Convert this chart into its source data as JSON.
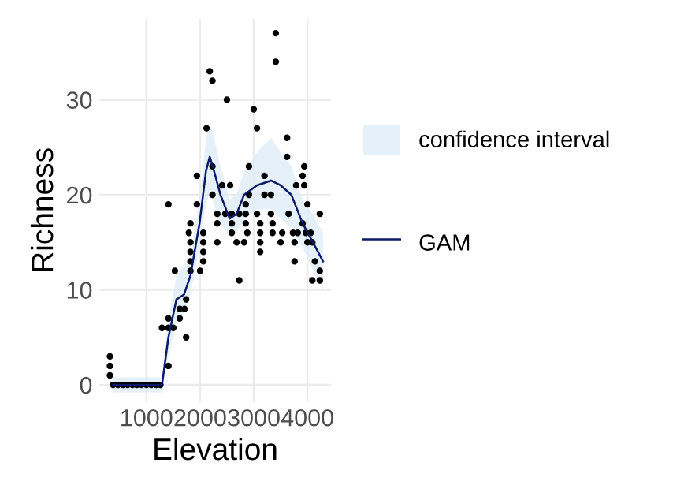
{
  "chart_data": {
    "type": "scatter",
    "xlabel": "Elevation",
    "ylabel": "Richness",
    "xlim": [
      120,
      4440
    ],
    "ylim": [
      -1.8,
      38.5
    ],
    "xticks": [
      1000,
      2000,
      3000,
      4000
    ],
    "yticks": [
      0,
      10,
      20,
      30
    ],
    "grid": true,
    "legend": "right",
    "annotations": [
      "confidence interval"
    ],
    "series": [
      {
        "type": "line",
        "name": "GAM",
        "color": "#0b1a66",
        "marker": "none",
        "x": [
          380,
          700,
          1000,
          1290,
          1410,
          1560,
          1700,
          1820,
          1990,
          2110,
          2180,
          2260,
          2380,
          2550,
          2680,
          2820,
          3060,
          3320,
          3500,
          3700,
          3910,
          4150,
          4290
        ],
        "values": [
          0,
          0,
          0,
          0,
          5,
          9,
          9.5,
          11.5,
          17,
          22.5,
          24,
          22.5,
          20,
          17.5,
          18,
          20,
          21,
          21.5,
          21,
          20,
          17,
          14.5,
          13
        ],
        "lower": [
          -0.8,
          -0.8,
          -0.8,
          -0.8,
          3,
          6.5,
          7.5,
          9.5,
          14.5,
          19,
          20.5,
          19,
          17,
          15.5,
          16,
          17.5,
          18.5,
          18.5,
          17.5,
          16.5,
          14.5,
          11.5,
          10
        ],
        "upper": [
          0.8,
          0.8,
          0.8,
          0.8,
          7,
          11.5,
          12.5,
          13.5,
          19.5,
          26,
          27.5,
          26,
          23,
          19.5,
          20,
          22.5,
          24.5,
          26,
          24.5,
          23,
          19.5,
          17.5,
          16
        ]
      },
      {
        "color": "#000000",
        "marker": "circle",
        "x": [
          320,
          320,
          320,
          380,
          470,
          560,
          650,
          740,
          820,
          910,
          1000,
          1090,
          1180,
          1260,
          1410,
          1290,
          1410,
          1500,
          1410,
          1620,
          1620,
          1710,
          1740,
          1740,
          1530,
          1820,
          2000,
          1820,
          2060,
          1820,
          2060,
          1820,
          2060,
          1790,
          2060,
          1820,
          3410,
          3410,
          2180,
          2230,
          2500,
          3000,
          3060,
          2120,
          3620,
          3620,
          3940,
          3910,
          2910,
          3200,
          1940,
          2230,
          3790,
          3940,
          2410,
          2560,
          2910,
          3200,
          3320,
          1410,
          1940,
          2230,
          2850,
          4000,
          2320,
          2470,
          2590,
          2730,
          2850,
          3060,
          3320,
          3650,
          4230,
          2590,
          2850,
          3120,
          3350,
          3910,
          2320,
          2590,
          2880,
          3120,
          3350,
          3530,
          3730,
          3820,
          3970,
          4060,
          2320,
          2680,
          2820,
          3120,
          3500,
          3760,
          4000,
          4090,
          3120,
          3760,
          4140,
          4230,
          2730,
          4090,
          4230
        ],
        "values": [
          3,
          2,
          1,
          0,
          0,
          0,
          0,
          0,
          0,
          0,
          0,
          0,
          0,
          0,
          2,
          6,
          6,
          6,
          7,
          7,
          8,
          8,
          9,
          5,
          12,
          12,
          12,
          13,
          13,
          14,
          14,
          15,
          15,
          16,
          16,
          17,
          37,
          34,
          33,
          32,
          30,
          29,
          27,
          27,
          26,
          24,
          23,
          22,
          23,
          22,
          22,
          23,
          21,
          21,
          21,
          21,
          20,
          20,
          20,
          19,
          19,
          20,
          19,
          19,
          18,
          18,
          18,
          18,
          18,
          18,
          18,
          18,
          18,
          17,
          17,
          17,
          17,
          17,
          17,
          16,
          16,
          16,
          16,
          16,
          16,
          16,
          16,
          16,
          15,
          15,
          15,
          15,
          15,
          15,
          15,
          15,
          14,
          13,
          13,
          12,
          11,
          11,
          11
        ]
      }
    ]
  }
}
